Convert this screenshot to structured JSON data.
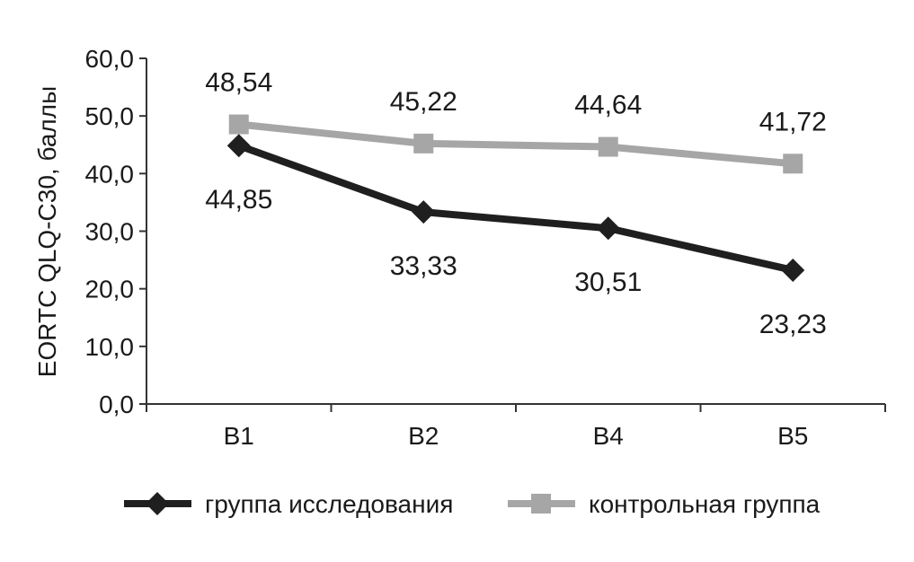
{
  "chart_data": {
    "type": "line",
    "ylabel": "EORTC QLQ-C30, баллы",
    "xlabel": "",
    "ylim": [
      0,
      60
    ],
    "y_ticks": [
      "0,0",
      "10,0",
      "20,0",
      "30,0",
      "40,0",
      "50,0",
      "60,0"
    ],
    "y_tick_values": [
      0,
      10,
      20,
      30,
      40,
      50,
      60
    ],
    "categories": [
      "В1",
      "В2",
      "В4",
      "В5"
    ],
    "grid": false,
    "legend_position": "bottom",
    "series": [
      {
        "name": "группа исследования",
        "marker": "diamond",
        "color": "#1f1f1f",
        "values": [
          44.85,
          33.33,
          30.51,
          23.23
        ],
        "labels": [
          "44,85",
          "33,33",
          "30,51",
          "23,23"
        ]
      },
      {
        "name": "контрольная группа",
        "marker": "square",
        "color": "#a6a6a6",
        "values": [
          48.54,
          45.22,
          44.64,
          41.72
        ],
        "labels": [
          "48,54",
          "45,22",
          "44,64",
          "41,72"
        ]
      }
    ]
  }
}
